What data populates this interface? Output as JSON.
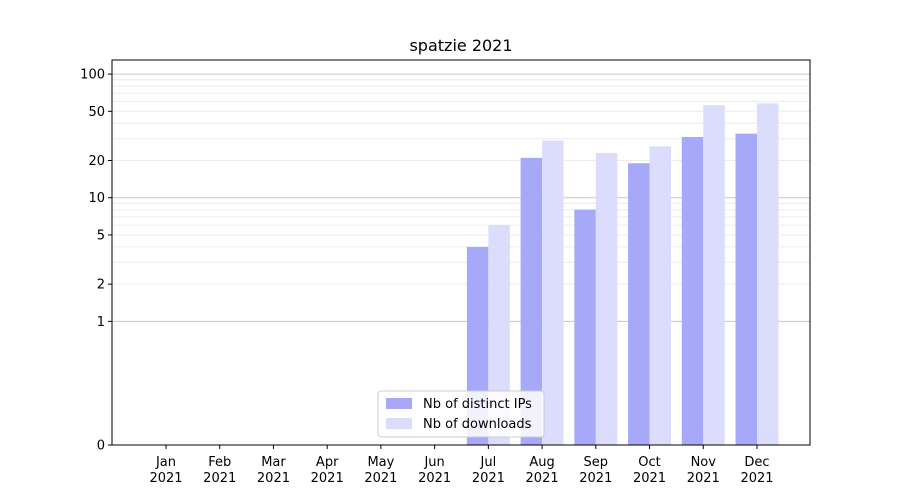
{
  "chart_data": {
    "type": "bar",
    "title": "spatzie 2021",
    "xlabel": "",
    "ylabel": "",
    "yscale": "symlog",
    "ylim": [
      0,
      130
    ],
    "yticks": [
      0,
      1,
      2,
      5,
      10,
      20,
      50,
      100
    ],
    "grid": true,
    "legend_position": "bottom-center",
    "categories": [
      [
        "Jan",
        "2021"
      ],
      [
        "Feb",
        "2021"
      ],
      [
        "Mar",
        "2021"
      ],
      [
        "Apr",
        "2021"
      ],
      [
        "May",
        "2021"
      ],
      [
        "Jun",
        "2021"
      ],
      [
        "Jul",
        "2021"
      ],
      [
        "Aug",
        "2021"
      ],
      [
        "Sep",
        "2021"
      ],
      [
        "Oct",
        "2021"
      ],
      [
        "Nov",
        "2021"
      ],
      [
        "Dec",
        "2021"
      ]
    ],
    "series": [
      {
        "name": "Nb of distinct IPs",
        "color": "#a8a8f8",
        "values": [
          0,
          0,
          0,
          0,
          0,
          0,
          4,
          21,
          8,
          19,
          31,
          33
        ]
      },
      {
        "name": "Nb of downloads",
        "color": "#dcdcfc",
        "values": [
          0,
          0,
          0,
          0,
          0,
          0,
          6,
          29,
          23,
          26,
          56,
          58
        ]
      }
    ]
  }
}
